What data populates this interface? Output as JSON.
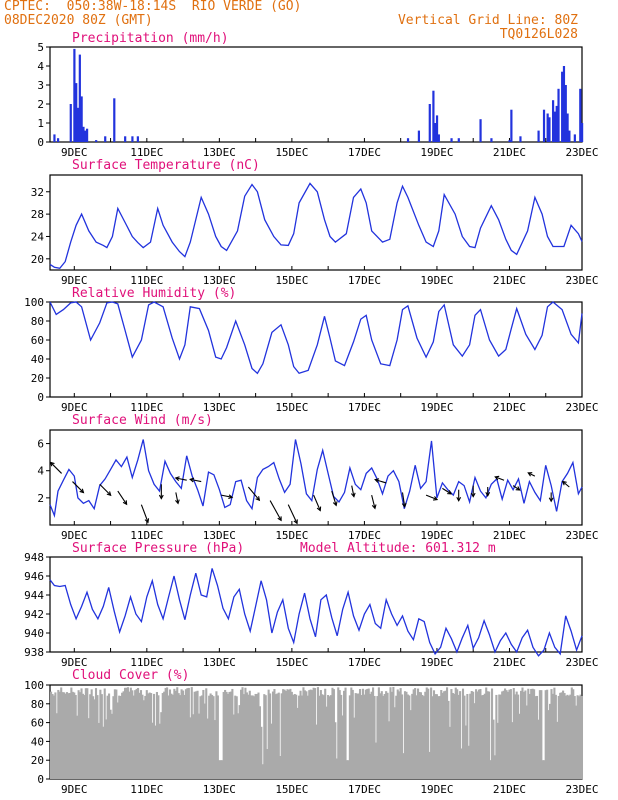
{
  "header": {
    "line1_left": "CPTEC:  050:38W-18:14S  RIO VERDE (GO)",
    "line2_left": "08DEC2020 80Z (GMT)",
    "line2_right": "Vertical Grid Line: 80Z",
    "line3_right": "TQ0126L028",
    "color": "#e07010"
  },
  "colors": {
    "title": "#e0107a",
    "line": "#2233dd",
    "bar": "#2233dd",
    "cloud": "#aaaaaa",
    "axis": "#000000"
  },
  "x_axis": {
    "tick_labels": [
      "9DEC",
      "11DEC",
      "13DEC",
      "15DEC",
      "17DEC",
      "19DEC",
      "21DEC",
      "23DEC"
    ],
    "range_days": [
      8.33,
      23.0
    ]
  },
  "chart_data": [
    {
      "type": "bar",
      "name": "precipitation",
      "title": "Precipitation (mm/h)",
      "ylim": [
        0,
        5
      ],
      "yticks": [
        0,
        1,
        2,
        3,
        4,
        5
      ],
      "x": [
        8.45,
        8.55,
        8.9,
        9.0,
        9.05,
        9.1,
        9.15,
        9.2,
        9.25,
        9.3,
        9.35,
        9.6,
        9.85,
        10.1,
        10.4,
        10.6,
        10.75,
        18.2,
        18.5,
        18.8,
        18.9,
        18.95,
        19.0,
        19.05,
        19.4,
        19.6,
        20.2,
        20.5,
        21.0,
        21.05,
        21.3,
        21.8,
        21.95,
        22.05,
        22.1,
        22.2,
        22.25,
        22.3,
        22.35,
        22.45,
        22.5,
        22.55,
        22.6,
        22.65,
        22.8,
        22.95,
        23.0
      ],
      "values": [
        0.4,
        0.2,
        2.0,
        4.9,
        3.1,
        1.8,
        4.6,
        2.4,
        0.8,
        0.6,
        0.7,
        0.1,
        0.3,
        2.3,
        0.3,
        0.3,
        0.3,
        0.2,
        0.6,
        2.0,
        2.7,
        1.0,
        1.4,
        0.4,
        0.2,
        0.2,
        1.2,
        0.2,
        0.1,
        1.7,
        0.3,
        0.6,
        1.7,
        1.5,
        1.3,
        2.2,
        1.6,
        1.9,
        2.8,
        3.7,
        4.0,
        3.0,
        1.5,
        0.6,
        0.4,
        2.8,
        1.0
      ]
    },
    {
      "type": "line",
      "name": "temperature",
      "title": "Surface Temperature (nC)",
      "ylim": [
        18,
        35
      ],
      "yticks": [
        20,
        24,
        28,
        32
      ],
      "x": [
        8.33,
        8.45,
        8.6,
        8.75,
        8.9,
        9.05,
        9.2,
        9.4,
        9.6,
        9.8,
        9.9,
        10.05,
        10.2,
        10.4,
        10.6,
        10.75,
        10.9,
        11.1,
        11.3,
        11.45,
        11.7,
        11.9,
        12.05,
        12.2,
        12.5,
        12.7,
        12.9,
        13.05,
        13.2,
        13.5,
        13.7,
        13.9,
        14.05,
        14.25,
        14.5,
        14.7,
        14.9,
        15.05,
        15.2,
        15.5,
        15.7,
        15.9,
        16.05,
        16.2,
        16.5,
        16.7,
        16.9,
        17.05,
        17.2,
        17.5,
        17.7,
        17.9,
        18.05,
        18.2,
        18.5,
        18.7,
        18.9,
        19.05,
        19.2,
        19.5,
        19.7,
        19.9,
        20.05,
        20.2,
        20.5,
        20.7,
        20.9,
        21.05,
        21.2,
        21.5,
        21.7,
        21.9,
        22.05,
        22.2,
        22.5,
        22.7,
        22.9,
        23.0
      ],
      "values": [
        19,
        18.5,
        18.3,
        19.5,
        23,
        26,
        28,
        25,
        23,
        22.4,
        22,
        24,
        29,
        26.5,
        24,
        22.9,
        22,
        23,
        29,
        26,
        23,
        21.3,
        20.4,
        23,
        31,
        28,
        24,
        22.2,
        21.5,
        25,
        31.2,
        33.3,
        32,
        27,
        24,
        22.5,
        22.4,
        24.5,
        30,
        33.5,
        32,
        27,
        24,
        23,
        24.5,
        31,
        32.5,
        30,
        25,
        23,
        23.5,
        30,
        33,
        31,
        26,
        23,
        22.2,
        25,
        31.5,
        28,
        24,
        22.2,
        22,
        25.5,
        29.5,
        27,
        23.5,
        21.5,
        20.8,
        25,
        31,
        28,
        24,
        22.2,
        22.2,
        26,
        24.5,
        23.1
      ]
    },
    {
      "type": "line",
      "name": "humidity",
      "title": "Relative Humidity (%)",
      "ylim": [
        0,
        100
      ],
      "yticks": [
        0,
        20,
        40,
        60,
        80,
        100
      ],
      "x": [
        8.33,
        8.5,
        8.7,
        8.9,
        9.05,
        9.2,
        9.45,
        9.7,
        9.9,
        10.05,
        10.2,
        10.4,
        10.6,
        10.85,
        11.05,
        11.2,
        11.45,
        11.7,
        11.9,
        12.05,
        12.2,
        12.45,
        12.7,
        12.9,
        13.05,
        13.2,
        13.45,
        13.7,
        13.9,
        14.05,
        14.2,
        14.45,
        14.7,
        14.9,
        15.05,
        15.2,
        15.45,
        15.7,
        15.9,
        16.05,
        16.2,
        16.45,
        16.7,
        16.9,
        17.05,
        17.2,
        17.45,
        17.7,
        17.9,
        18.05,
        18.2,
        18.45,
        18.7,
        18.9,
        19.05,
        19.2,
        19.45,
        19.7,
        19.9,
        20.05,
        20.2,
        20.45,
        20.7,
        20.9,
        21.05,
        21.2,
        21.45,
        21.7,
        21.9,
        22.05,
        22.2,
        22.45,
        22.7,
        22.9,
        23.0
      ],
      "values": [
        100,
        87,
        92,
        99,
        100,
        95,
        60,
        78,
        99,
        100,
        98,
        70,
        42,
        60,
        97,
        100,
        95,
        62,
        40,
        55,
        95,
        93,
        70,
        42,
        40,
        52,
        80,
        55,
        30,
        25,
        35,
        68,
        76,
        55,
        32,
        25,
        28,
        55,
        85,
        62,
        38,
        33,
        58,
        82,
        86,
        60,
        35,
        33,
        60,
        92,
        96,
        62,
        42,
        58,
        90,
        97,
        55,
        43,
        55,
        86,
        92,
        60,
        43,
        50,
        72,
        93,
        66,
        50,
        65,
        95,
        100,
        92,
        66,
        57,
        88
      ]
    },
    {
      "type": "line",
      "name": "wind",
      "title": "Surface Wind (m/s)",
      "ylim": [
        0,
        7
      ],
      "yticks": [
        2,
        4,
        6
      ],
      "x": [
        8.33,
        8.45,
        8.55,
        8.7,
        8.85,
        9.0,
        9.1,
        9.25,
        9.4,
        9.55,
        9.7,
        9.85,
        10.0,
        10.15,
        10.3,
        10.45,
        10.6,
        10.75,
        10.9,
        11.05,
        11.2,
        11.35,
        11.5,
        11.65,
        11.8,
        11.95,
        12.1,
        12.25,
        12.4,
        12.55,
        12.7,
        12.85,
        13.0,
        13.15,
        13.3,
        13.45,
        13.6,
        13.75,
        13.9,
        14.05,
        14.2,
        14.35,
        14.5,
        14.65,
        14.8,
        14.95,
        15.1,
        15.25,
        15.4,
        15.55,
        15.7,
        15.85,
        16.0,
        16.15,
        16.3,
        16.45,
        16.6,
        16.75,
        16.9,
        17.05,
        17.2,
        17.35,
        17.5,
        17.65,
        17.8,
        17.95,
        18.1,
        18.25,
        18.4,
        18.55,
        18.7,
        18.85,
        19.0,
        19.15,
        19.3,
        19.45,
        19.6,
        19.75,
        19.9,
        20.05,
        20.2,
        20.35,
        20.5,
        20.65,
        20.8,
        20.95,
        21.1,
        21.25,
        21.4,
        21.55,
        21.7,
        21.85,
        22.0,
        22.15,
        22.3,
        22.45,
        22.6,
        22.75,
        22.9,
        23.0
      ],
      "values": [
        1.5,
        0.7,
        2.5,
        3.3,
        4.1,
        3.6,
        2.0,
        1.6,
        1.8,
        1.2,
        2.9,
        3.4,
        4.1,
        4.8,
        4.3,
        5.0,
        3.5,
        4.8,
        6.3,
        4.0,
        3.0,
        2.5,
        4.7,
        3.8,
        3.2,
        2.7,
        5.1,
        3.6,
        2.6,
        1.4,
        3.9,
        3.7,
        2.6,
        1.3,
        1.5,
        3.2,
        3.3,
        1.8,
        1.2,
        3.5,
        4.1,
        4.3,
        4.6,
        3.4,
        2.4,
        3.0,
        6.3,
        4.5,
        2.3,
        1.8,
        4.1,
        5.5,
        3.8,
        2.1,
        1.7,
        2.4,
        4.2,
        3.0,
        2.6,
        3.8,
        4.2,
        3.4,
        2.3,
        3.6,
        4.0,
        3.2,
        1.2,
        2.5,
        4.4,
        2.7,
        3.2,
        6.2,
        2.0,
        3.1,
        2.6,
        2.2,
        3.2,
        2.9,
        1.7,
        3.5,
        2.5,
        2.0,
        3.0,
        3.4,
        1.9,
        3.3,
        2.6,
        3.4,
        1.6,
        3.2,
        2.4,
        1.8,
        4.4,
        2.9,
        1.0,
        3.2,
        3.8,
        4.6,
        2.3,
        2.8
      ]
    },
    {
      "type": "line",
      "name": "pressure",
      "title": "Surface Pressure (hPa)",
      "subtitle": "Model Altitude: 601.312 m",
      "ylim": [
        938,
        948
      ],
      "yticks": [
        938,
        940,
        942,
        944,
        946,
        948
      ],
      "x": [
        8.33,
        8.45,
        8.6,
        8.75,
        8.9,
        9.05,
        9.2,
        9.35,
        9.5,
        9.65,
        9.8,
        9.95,
        10.1,
        10.25,
        10.4,
        10.55,
        10.7,
        10.85,
        11.0,
        11.15,
        11.3,
        11.45,
        11.6,
        11.75,
        11.9,
        12.05,
        12.2,
        12.35,
        12.5,
        12.65,
        12.8,
        12.95,
        13.1,
        13.25,
        13.4,
        13.55,
        13.7,
        13.85,
        14.0,
        14.15,
        14.3,
        14.45,
        14.6,
        14.75,
        14.9,
        15.05,
        15.2,
        15.35,
        15.5,
        15.65,
        15.8,
        15.95,
        16.1,
        16.25,
        16.4,
        16.55,
        16.7,
        16.85,
        17.0,
        17.15,
        17.3,
        17.45,
        17.6,
        17.75,
        17.9,
        18.05,
        18.2,
        18.35,
        18.5,
        18.65,
        18.8,
        18.95,
        19.1,
        19.25,
        19.4,
        19.55,
        19.7,
        19.85,
        20.0,
        20.15,
        20.3,
        20.45,
        20.6,
        20.75,
        20.9,
        21.05,
        21.2,
        21.35,
        21.5,
        21.65,
        21.8,
        21.95,
        22.1,
        22.25,
        22.4,
        22.55,
        22.7,
        22.85,
        23.0
      ],
      "values": [
        945.6,
        945.0,
        944.9,
        945.0,
        943.0,
        941.5,
        942.8,
        944.3,
        942.5,
        941.5,
        942.8,
        944.8,
        942.3,
        940.1,
        941.8,
        943.8,
        942.0,
        941.2,
        943.8,
        945.5,
        943.0,
        941.5,
        943.8,
        946.0,
        943.5,
        941.4,
        944.0,
        946.3,
        944.0,
        943.8,
        946.8,
        945.0,
        942.6,
        941.5,
        943.8,
        944.6,
        942.0,
        940.2,
        942.8,
        945.5,
        943.5,
        940.0,
        942.2,
        943.5,
        940.5,
        939.0,
        942.0,
        944.2,
        941.5,
        939.6,
        943.5,
        944.0,
        941.6,
        939.7,
        942.5,
        944.3,
        941.8,
        940.3,
        942.0,
        943.0,
        941.0,
        940.5,
        943.5,
        942.0,
        940.8,
        941.8,
        940.2,
        939.3,
        941.5,
        941.2,
        939.0,
        937.8,
        938.5,
        940.5,
        939.4,
        938.0,
        939.5,
        940.8,
        938.4,
        939.5,
        941.3,
        939.8,
        938.0,
        939.2,
        940.0,
        938.8,
        938.0,
        939.5,
        940.3,
        938.5,
        937.6,
        938.2,
        940.0,
        938.5,
        937.8,
        941.8,
        940.2,
        938.2,
        939.7
      ]
    },
    {
      "type": "bar",
      "name": "cloud",
      "title": "Cloud Cover (%)",
      "ylim": [
        0,
        100
      ],
      "yticks": [
        0,
        20,
        40,
        60,
        80,
        100
      ]
    }
  ]
}
